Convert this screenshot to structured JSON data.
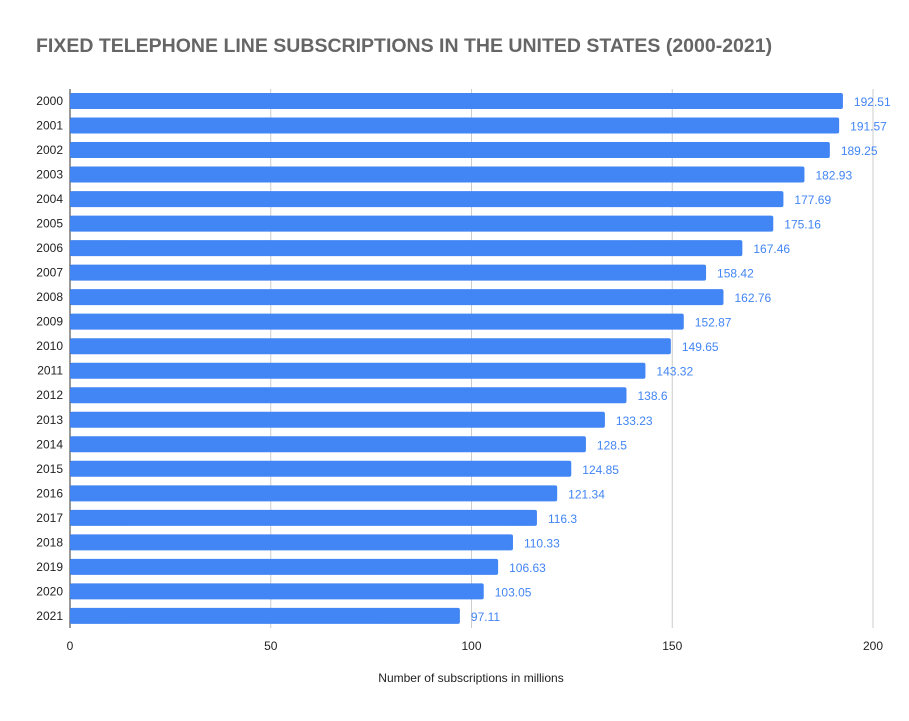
{
  "chart_data": {
    "type": "bar",
    "orientation": "horizontal",
    "title": "FIXED TELEPHONE LINE SUBSCRIPTIONS IN THE UNITED STATES (2000-2021)",
    "xlabel": "Number of subscriptions in millions",
    "ylabel": "",
    "xlim": [
      0,
      200
    ],
    "xticks": [
      0,
      50,
      100,
      150,
      200
    ],
    "grid": true,
    "data_labels": true,
    "categories": [
      "2000",
      "2001",
      "2002",
      "2003",
      "2004",
      "2005",
      "2006",
      "2007",
      "2008",
      "2009",
      "2010",
      "2011",
      "2012",
      "2013",
      "2014",
      "2015",
      "2016",
      "2017",
      "2018",
      "2019",
      "2020",
      "2021"
    ],
    "values": [
      192.51,
      191.57,
      189.25,
      182.93,
      177.69,
      175.16,
      167.46,
      158.42,
      162.76,
      152.87,
      149.65,
      143.32,
      138.6,
      133.23,
      128.5,
      124.85,
      121.34,
      116.3,
      110.33,
      106.63,
      103.05,
      97.11
    ],
    "colors": {
      "bar": "#4285f4",
      "label": "#4285f4",
      "grid": "#cccccc",
      "title": "#666666"
    }
  }
}
